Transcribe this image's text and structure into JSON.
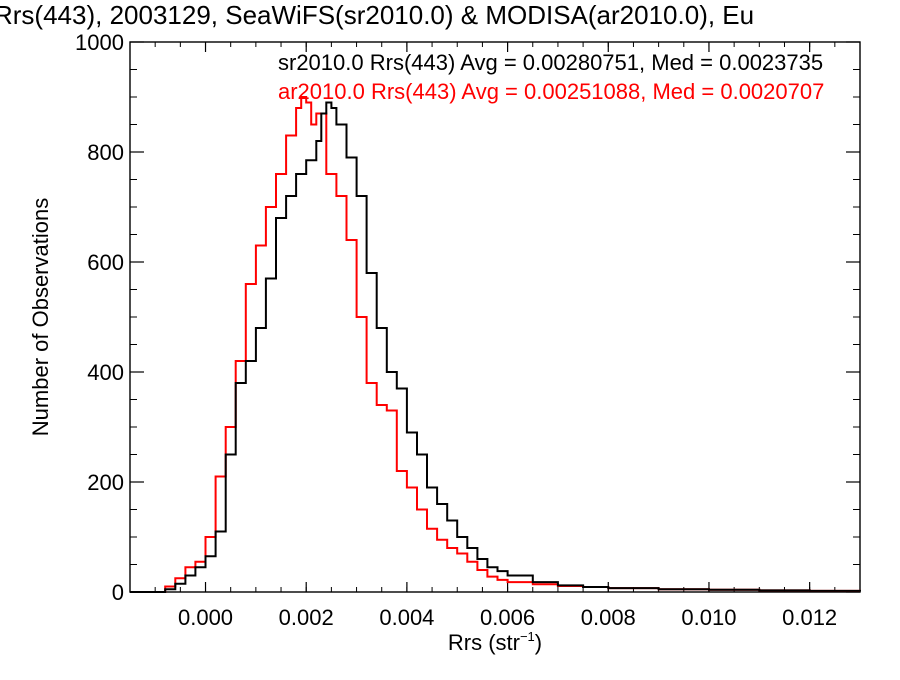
{
  "chart_data": {
    "type": "line",
    "title": "Rrs(443), 2003129, SeaWiFS(sr2010.0) & MODISA(ar2010.0), Eu",
    "xlabel": "Rrs (str",
    "xlabel_sup": "−1",
    "xlabel_close": ")",
    "ylabel": "Number of Observations",
    "xlim": [
      -0.0015,
      0.013
    ],
    "ylim": [
      0,
      1000
    ],
    "xticks": [
      0.0,
      0.002,
      0.004,
      0.006,
      0.008,
      0.01,
      0.012
    ],
    "xtick_labels": [
      "0.000",
      "0.002",
      "0.004",
      "0.006",
      "0.008",
      "0.010",
      "0.012"
    ],
    "yticks": [
      0,
      200,
      400,
      600,
      800,
      1000
    ],
    "ytick_labels": [
      "0",
      "200",
      "400",
      "600",
      "800",
      "1000"
    ],
    "step": true,
    "series": [
      {
        "legend": "sr2010.0 Rrs(443) Avg = 0.00280751, Med = 0.0023735",
        "color": "#000000",
        "x": [
          -0.0015,
          -0.001,
          -0.0008,
          -0.0006,
          -0.0004,
          -0.0002,
          0.0,
          0.0002,
          0.0004,
          0.0006,
          0.0008,
          0.001,
          0.0012,
          0.0014,
          0.0016,
          0.0018,
          0.002,
          0.0022,
          0.0023,
          0.0024,
          0.0025,
          0.0026,
          0.0028,
          0.003,
          0.0032,
          0.0034,
          0.0036,
          0.0038,
          0.004,
          0.0042,
          0.0044,
          0.0046,
          0.0048,
          0.005,
          0.0052,
          0.0054,
          0.0056,
          0.0058,
          0.006,
          0.0065,
          0.007,
          0.0075,
          0.008,
          0.009,
          0.01,
          0.011,
          0.012,
          0.013
        ],
        "y": [
          0,
          0,
          5,
          15,
          30,
          45,
          65,
          110,
          250,
          380,
          420,
          480,
          570,
          680,
          720,
          760,
          785,
          820,
          870,
          890,
          880,
          850,
          790,
          720,
          580,
          480,
          400,
          370,
          290,
          250,
          190,
          160,
          130,
          100,
          80,
          60,
          45,
          38,
          30,
          18,
          12,
          9,
          7,
          5,
          4,
          3,
          2,
          1
        ]
      },
      {
        "legend": "ar2010.0 Rrs(443) Avg = 0.00251088, Med = 0.0020707",
        "color": "#ff0000",
        "x": [
          -0.0015,
          -0.001,
          -0.0008,
          -0.0006,
          -0.0004,
          -0.0002,
          0.0,
          0.0002,
          0.0004,
          0.0006,
          0.0008,
          0.001,
          0.0012,
          0.0014,
          0.0016,
          0.0018,
          0.0019,
          0.002,
          0.0021,
          0.0022,
          0.0024,
          0.0026,
          0.0028,
          0.003,
          0.0032,
          0.0034,
          0.0036,
          0.0038,
          0.004,
          0.0042,
          0.0044,
          0.0046,
          0.0048,
          0.005,
          0.0052,
          0.0054,
          0.0056,
          0.0058,
          0.006,
          0.0065,
          0.007,
          0.0075,
          0.008,
          0.009,
          0.01,
          0.011,
          0.012,
          0.013
        ],
        "y": [
          0,
          0,
          10,
          25,
          45,
          55,
          100,
          210,
          300,
          420,
          560,
          630,
          700,
          760,
          830,
          880,
          900,
          890,
          850,
          870,
          760,
          720,
          640,
          500,
          380,
          340,
          330,
          220,
          190,
          150,
          115,
          95,
          80,
          70,
          55,
          40,
          28,
          22,
          18,
          14,
          11,
          9,
          7,
          5,
          4,
          3,
          2,
          1
        ]
      }
    ]
  }
}
